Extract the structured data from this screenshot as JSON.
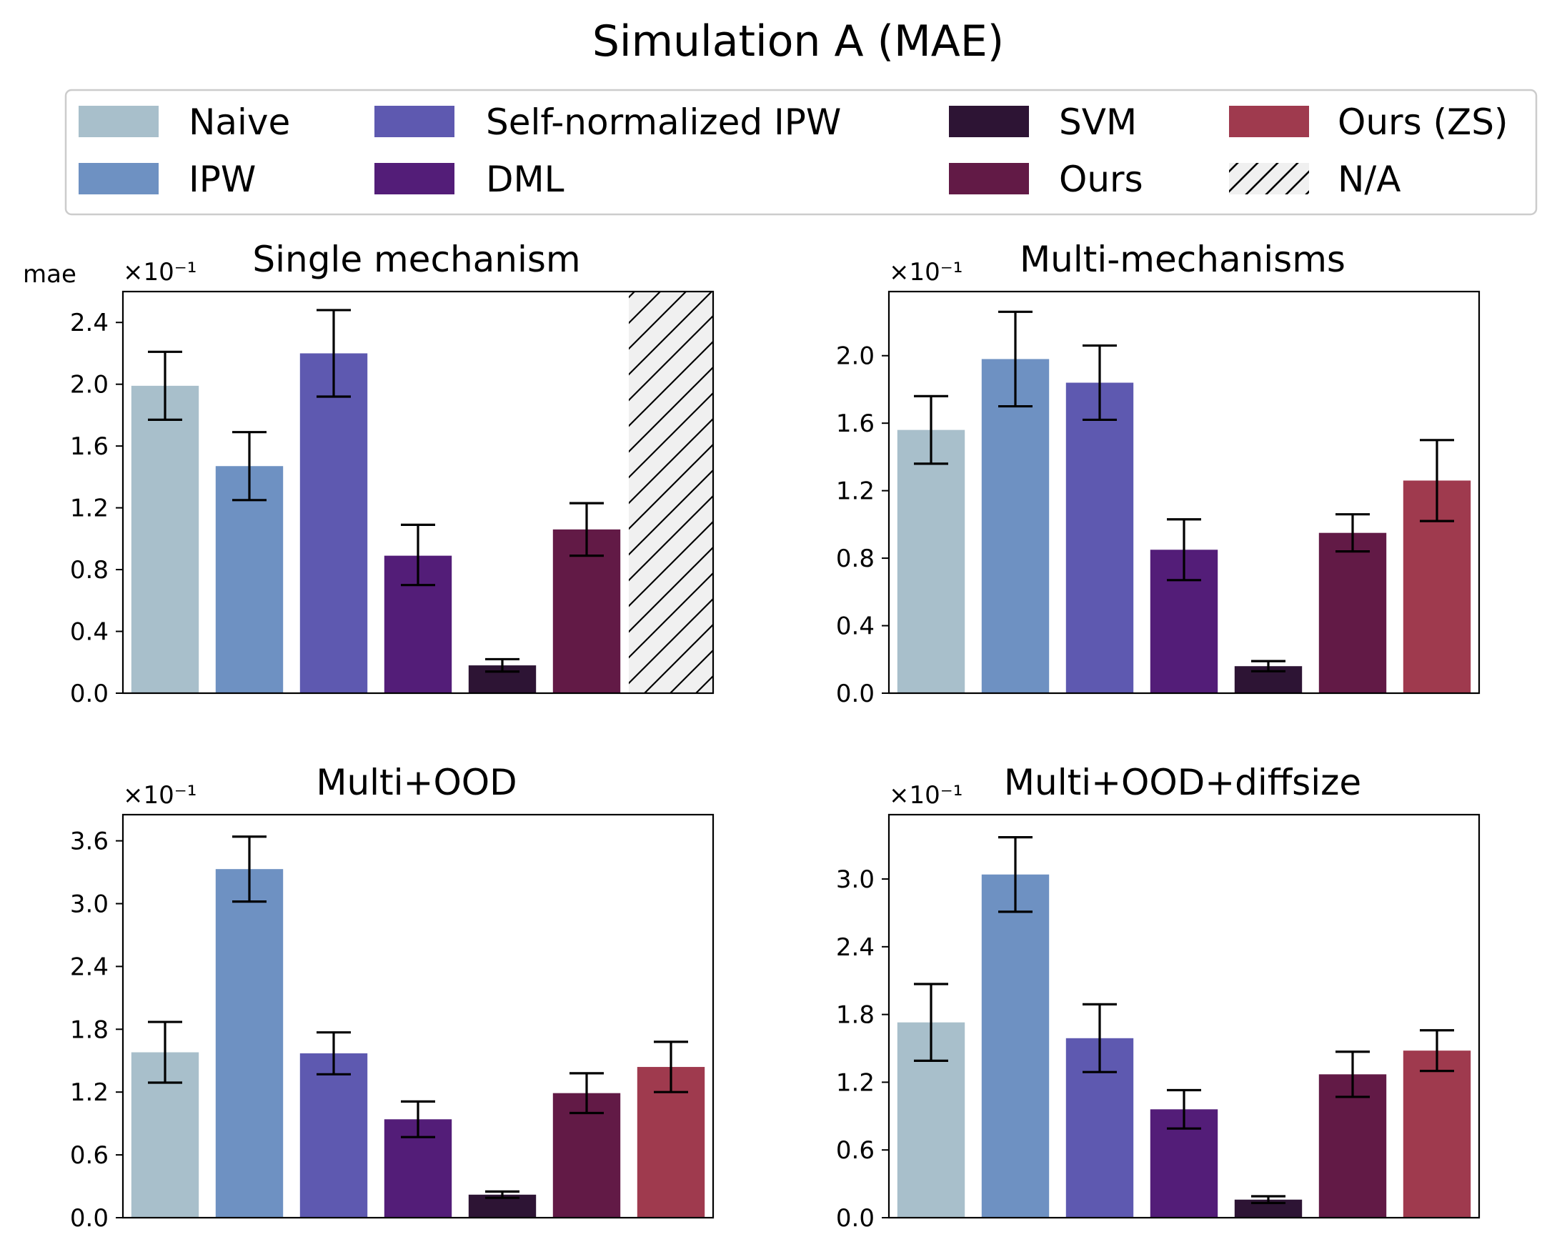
{
  "figure_title": "Simulation A (MAE)",
  "legend": {
    "items": [
      {
        "label": "Naive",
        "color": "#a8bfcb",
        "hatch": false
      },
      {
        "label": "IPW",
        "color": "#6e91c2",
        "hatch": false
      },
      {
        "label": "Self-normalized IPW",
        "color": "#5e59b0",
        "hatch": false
      },
      {
        "label": "DML",
        "color": "#531d78",
        "hatch": false
      },
      {
        "label": "SVM",
        "color": "#2d1434",
        "hatch": false
      },
      {
        "label": "Ours",
        "color": "#621a46",
        "hatch": false
      },
      {
        "label": "Ours (ZS)",
        "color": "#9f3a4e",
        "hatch": false
      },
      {
        "label": "N/A",
        "color": "#f0f0f0",
        "hatch": true
      }
    ]
  },
  "ylabel_text": "mae",
  "chart_data": [
    {
      "type": "bar",
      "title": "Single mechanism",
      "scale_label": "×10⁻¹",
      "ylabel": "mae",
      "ylim": [
        0,
        2.6
      ],
      "yticks": [
        "0.0",
        "0.4",
        "0.8",
        "1.2",
        "1.6",
        "2.0",
        "2.4"
      ],
      "categories": [
        "Naive",
        "IPW",
        "Self-normalized IPW",
        "DML",
        "SVM",
        "Ours",
        "Ours (ZS)"
      ],
      "values": [
        1.99,
        1.47,
        2.2,
        0.89,
        0.18,
        1.06,
        null
      ],
      "errors": [
        [
          1.77,
          2.21
        ],
        [
          1.25,
          1.69
        ],
        [
          1.92,
          2.48
        ],
        [
          0.7,
          1.09
        ],
        [
          0.14,
          0.22
        ],
        [
          0.89,
          1.23
        ],
        null
      ],
      "not_available": [
        6
      ]
    },
    {
      "type": "bar",
      "title": "Multi-mechanisms",
      "scale_label": "×10⁻¹",
      "ylim": [
        0,
        2.38
      ],
      "yticks": [
        "0.0",
        "0.4",
        "0.8",
        "1.2",
        "1.6",
        "2.0"
      ],
      "categories": [
        "Naive",
        "IPW",
        "Self-normalized IPW",
        "DML",
        "SVM",
        "Ours",
        "Ours (ZS)"
      ],
      "values": [
        1.56,
        1.98,
        1.84,
        0.85,
        0.16,
        0.95,
        1.26
      ],
      "errors": [
        [
          1.36,
          1.76
        ],
        [
          1.7,
          2.26
        ],
        [
          1.62,
          2.06
        ],
        [
          0.67,
          1.03
        ],
        [
          0.13,
          0.19
        ],
        [
          0.84,
          1.06
        ],
        [
          1.02,
          1.5
        ]
      ],
      "not_available": []
    },
    {
      "type": "bar",
      "title": "Multi+OOD",
      "scale_label": "×10⁻¹",
      "ylim": [
        0,
        3.85
      ],
      "yticks": [
        "0.0",
        "0.6",
        "1.2",
        "1.8",
        "2.4",
        "3.0",
        "3.6"
      ],
      "categories": [
        "Naive",
        "IPW",
        "Self-normalized IPW",
        "DML",
        "SVM",
        "Ours",
        "Ours (ZS)"
      ],
      "values": [
        1.58,
        3.33,
        1.57,
        0.94,
        0.22,
        1.19,
        1.44
      ],
      "errors": [
        [
          1.29,
          1.87
        ],
        [
          3.02,
          3.64
        ],
        [
          1.37,
          1.77
        ],
        [
          0.77,
          1.11
        ],
        [
          0.19,
          0.25
        ],
        [
          1.0,
          1.38
        ],
        [
          1.2,
          1.68
        ]
      ],
      "not_available": []
    },
    {
      "type": "bar",
      "title": "Multi+OOD+diffsize",
      "scale_label": "×10⁻¹",
      "ylim": [
        0,
        3.57
      ],
      "yticks": [
        "0.0",
        "0.6",
        "1.2",
        "1.8",
        "2.4",
        "3.0"
      ],
      "categories": [
        "Naive",
        "IPW",
        "Self-normalized IPW",
        "DML",
        "SVM",
        "Ours",
        "Ours (ZS)"
      ],
      "values": [
        1.73,
        3.04,
        1.59,
        0.96,
        0.16,
        1.27,
        1.48
      ],
      "errors": [
        [
          1.39,
          2.07
        ],
        [
          2.71,
          3.37
        ],
        [
          1.29,
          1.89
        ],
        [
          0.79,
          1.13
        ],
        [
          0.13,
          0.19
        ],
        [
          1.07,
          1.47
        ],
        [
          1.3,
          1.66
        ]
      ],
      "not_available": []
    }
  ]
}
